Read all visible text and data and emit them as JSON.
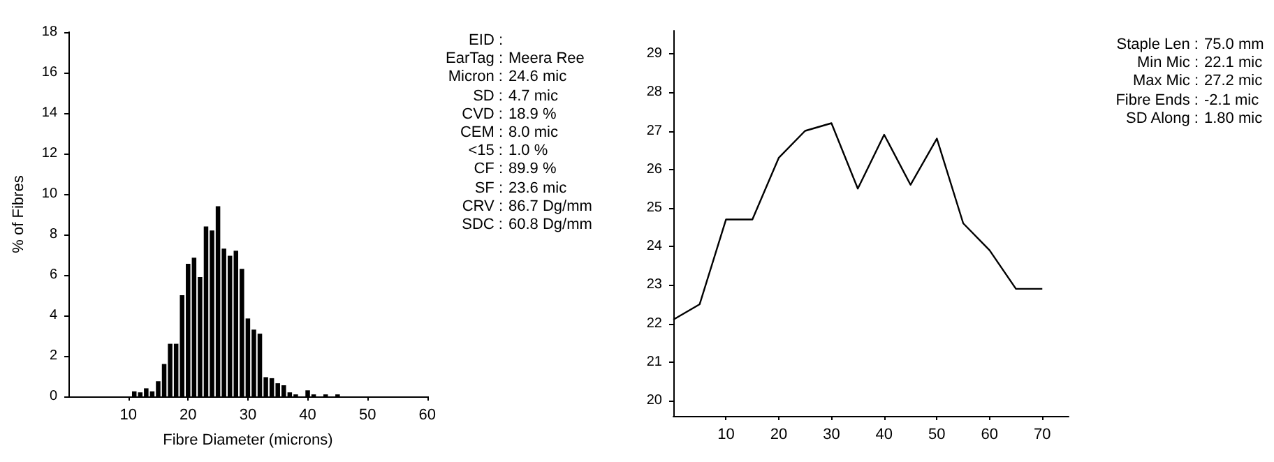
{
  "chart_data": [
    {
      "type": "histogram",
      "xlabel": "Fibre Diameter (microns)",
      "ylabel": "% of Fibres",
      "color": "#000000",
      "bins": [
        10.5,
        11.5,
        12.5,
        13.5,
        14.5,
        15.5,
        16.5,
        17.5,
        18.5,
        19.5,
        20.5,
        21.5,
        22.5,
        23.5,
        24.5,
        25.5,
        26.5,
        27.5,
        28.5,
        29.5,
        30.5,
        31.5,
        32.5,
        33.5,
        34.5,
        35.5,
        36.5,
        37.5,
        38.5,
        39.5,
        40.5,
        41.5,
        42.5,
        43.5,
        44.5,
        45.5
      ],
      "values": [
        0.25,
        0.2,
        0.4,
        0.25,
        0.75,
        1.6,
        2.6,
        2.6,
        5.0,
        6.55,
        6.85,
        5.9,
        8.4,
        8.2,
        9.4,
        7.3,
        6.95,
        7.2,
        6.3,
        3.85,
        3.3,
        3.1,
        0.95,
        0.9,
        0.65,
        0.55,
        0.2,
        0.1,
        0,
        0.3,
        0.1,
        0,
        0.1,
        0,
        0.1
      ],
      "xlim": [
        0,
        60
      ],
      "xticks": [
        10,
        20,
        30,
        40,
        50,
        60
      ],
      "ylim": [
        0,
        18
      ],
      "yticks": [
        0,
        2,
        4,
        6,
        8,
        10,
        12,
        14,
        16,
        18
      ],
      "grid": false
    },
    {
      "type": "other",
      "annotations": [
        "EID :",
        "EarTag : Meera Ree",
        "Micron : 24.6 mic",
        "SD : 4.7 mic",
        "CVD : 18.9 %",
        "CEM : 8.0 mic",
        "<15 : 1.0 %",
        "CF : 89.9 %",
        "SF : 23.6 mic",
        "CRV : 86.7 Dg/mm",
        "SDC : 60.8 Dg/mm"
      ]
    },
    {
      "type": "line",
      "color": "#000000",
      "x": [
        0,
        5,
        10,
        15,
        20,
        25,
        30,
        35,
        40,
        45,
        50,
        55,
        60,
        65,
        70
      ],
      "values": [
        22.1,
        22.5,
        24.7,
        24.7,
        26.3,
        27.0,
        27.2,
        25.5,
        26.9,
        25.6,
        26.8,
        24.6,
        23.9,
        22.9,
        22.9
      ],
      "xlim": [
        0,
        75
      ],
      "xticks": [
        10,
        20,
        30,
        40,
        50,
        60,
        70
      ],
      "ylim": [
        19.6,
        29.6
      ],
      "yticks": [
        20,
        21,
        22,
        23,
        24,
        25,
        26,
        27,
        28,
        29
      ],
      "grid": false,
      "marker": "none",
      "line_style": "solid"
    },
    {
      "type": "other",
      "annotations": [
        "Staple Len : 75.0 mm",
        "Min Mic : 22.1 mic",
        "Max Mic : 27.2 mic",
        "Fibre Ends : -2.1 mic",
        "SD Along : 1.80 mic"
      ]
    }
  ]
}
